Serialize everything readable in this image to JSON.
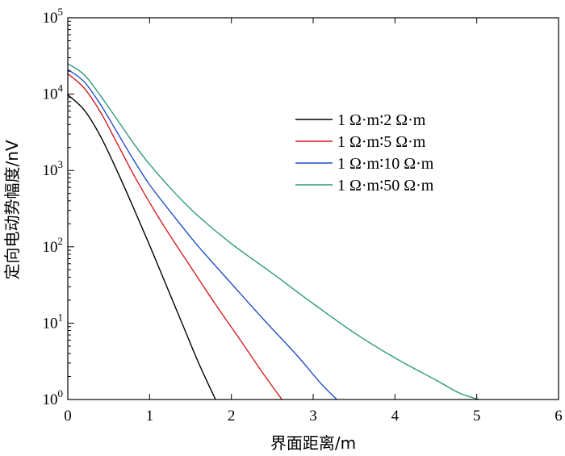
{
  "chart_data": {
    "type": "line",
    "title": "",
    "xlabel": "界面距离/m",
    "ylabel": "定向电动势幅度/nV",
    "xlim": [
      0,
      6
    ],
    "ylim": [
      1,
      100000
    ],
    "yscale": "log",
    "grid": false,
    "legend_position": "upper-right",
    "x_ticks": [
      0,
      1,
      2,
      3,
      4,
      5,
      6
    ],
    "y_ticks": [
      {
        "value": 1,
        "base": "10",
        "exp": "0"
      },
      {
        "value": 10,
        "base": "10",
        "exp": "1"
      },
      {
        "value": 100,
        "base": "10",
        "exp": "2"
      },
      {
        "value": 1000,
        "base": "10",
        "exp": "3"
      },
      {
        "value": 10000,
        "base": "10",
        "exp": "4"
      },
      {
        "value": 100000,
        "base": "10",
        "exp": "5"
      }
    ],
    "series": [
      {
        "name": "1 Ω·m∶2 Ω·m",
        "color": "#000000",
        "points": [
          [
            0,
            9800
          ],
          [
            0.2,
            6200
          ],
          [
            0.4,
            2800
          ],
          [
            0.6,
            1000
          ],
          [
            0.8,
            330
          ],
          [
            1.0,
            105
          ],
          [
            1.2,
            32
          ],
          [
            1.4,
            9.8
          ],
          [
            1.6,
            3.0
          ],
          [
            1.82,
            0.93
          ]
        ]
      },
      {
        "name": "1 Ω·m∶5 Ω·m",
        "color": "#d42020",
        "points": [
          [
            0,
            18500
          ],
          [
            0.2,
            12000
          ],
          [
            0.4,
            5800
          ],
          [
            0.6,
            2300
          ],
          [
            0.8,
            900
          ],
          [
            1.0,
            380
          ],
          [
            1.2,
            170
          ],
          [
            1.5,
            55
          ],
          [
            1.8,
            18
          ],
          [
            2.1,
            6.2
          ],
          [
            2.4,
            2.1
          ],
          [
            2.64,
            0.93
          ]
        ]
      },
      {
        "name": "1 Ω·m∶10 Ω·m",
        "color": "#1f4fc8",
        "points": [
          [
            0,
            21000
          ],
          [
            0.2,
            14500
          ],
          [
            0.4,
            7300
          ],
          [
            0.6,
            3200
          ],
          [
            0.8,
            1400
          ],
          [
            1.0,
            650
          ],
          [
            1.3,
            250
          ],
          [
            1.6,
            100
          ],
          [
            2.0,
            33
          ],
          [
            2.4,
            11
          ],
          [
            2.8,
            3.8
          ],
          [
            3.1,
            1.6
          ],
          [
            3.32,
            0.93
          ]
        ]
      },
      {
        "name": "1 Ω·m∶50 Ω·m",
        "color": "#2e9a7a",
        "points": [
          [
            0,
            25000
          ],
          [
            0.2,
            18000
          ],
          [
            0.4,
            9500
          ],
          [
            0.6,
            4700
          ],
          [
            0.8,
            2300
          ],
          [
            1.0,
            1200
          ],
          [
            1.3,
            520
          ],
          [
            1.6,
            250
          ],
          [
            2.0,
            110
          ],
          [
            2.5,
            45
          ],
          [
            3.0,
            18
          ],
          [
            3.5,
            7.5
          ],
          [
            4.0,
            3.5
          ],
          [
            4.5,
            1.8
          ],
          [
            4.8,
            1.2
          ],
          [
            5.13,
            0.93
          ]
        ]
      }
    ]
  }
}
